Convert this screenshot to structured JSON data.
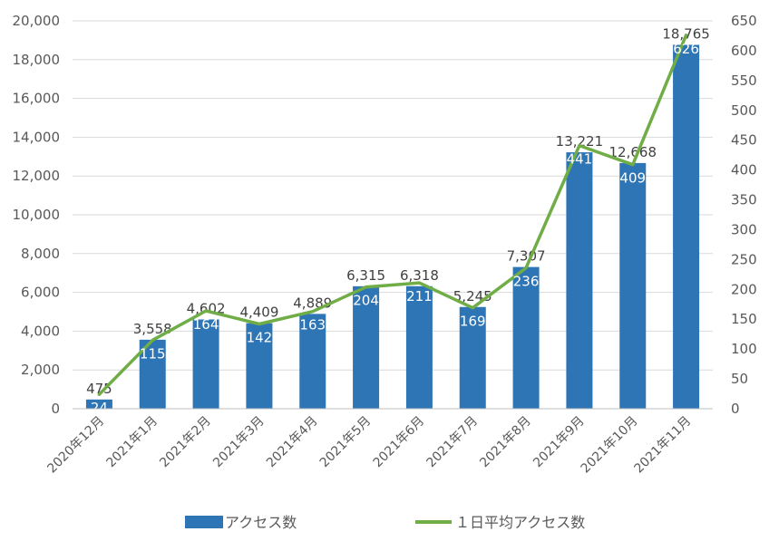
{
  "chart_data": {
    "type": "bar",
    "categories": [
      "2020年12月",
      "2021年1月",
      "2021年2月",
      "2021年3月",
      "2021年4月",
      "2021年5月",
      "2021年6月",
      "2021年7月",
      "2021年8月",
      "2021年9月",
      "2021年10月",
      "2021年11月"
    ],
    "series": [
      {
        "name": "アクセス数",
        "type": "bar",
        "axis": "left",
        "values": [
          475,
          3558,
          4602,
          4409,
          4889,
          6315,
          6318,
          5245,
          7307,
          13221,
          12668,
          18765
        ],
        "labels": [
          "475",
          "3,558",
          "4,602",
          "4,409",
          "4,889",
          "6,315",
          "6,318",
          "5,245",
          "7,307",
          "13,221",
          "12,668",
          "18,765"
        ]
      },
      {
        "name": "１日平均アクセス数",
        "type": "line",
        "axis": "right",
        "values": [
          24,
          115,
          164,
          142,
          163,
          204,
          211,
          169,
          236,
          441,
          409,
          626
        ],
        "labels": [
          "24",
          "115",
          "164",
          "142",
          "163",
          "204",
          "211",
          "169",
          "236",
          "441",
          "409",
          "626"
        ]
      }
    ],
    "y_left": {
      "range": [
        0,
        20000
      ],
      "ticks": [
        "0",
        "2,000",
        "4,000",
        "6,000",
        "8,000",
        "10,000",
        "12,000",
        "14,000",
        "16,000",
        "18,000",
        "20,000"
      ]
    },
    "y_right": {
      "range": [
        0,
        650
      ],
      "ticks": [
        "0",
        "50",
        "100",
        "150",
        "200",
        "250",
        "300",
        "350",
        "400",
        "450",
        "500",
        "550",
        "600",
        "650"
      ]
    },
    "grid": true,
    "legend_position": "bottom",
    "colors": {
      "bar": "#2e75b6",
      "line": "#70ad47",
      "grid": "#d9d9d9",
      "axis": "#bfbfbf"
    }
  }
}
